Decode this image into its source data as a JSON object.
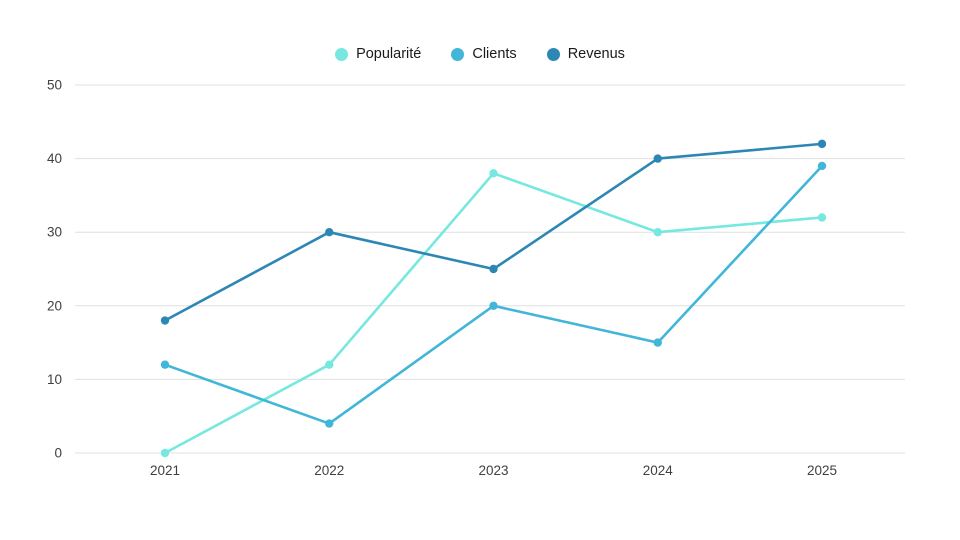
{
  "chart_data": {
    "type": "line",
    "title": "",
    "xlabel": "",
    "ylabel": "",
    "categories": [
      "2021",
      "2022",
      "2023",
      "2024",
      "2025"
    ],
    "series": [
      {
        "name": "Popularité",
        "color": "#76E8DF",
        "values": [
          0,
          12,
          38,
          30,
          32
        ]
      },
      {
        "name": "Clients",
        "color": "#41B6D9",
        "values": [
          12,
          4,
          20,
          15,
          39
        ]
      },
      {
        "name": "Revenus",
        "color": "#2D87B5",
        "values": [
          18,
          30,
          25,
          40,
          42
        ]
      }
    ],
    "ylim": [
      0,
      50
    ],
    "ytick_step": 10,
    "grid": true,
    "legend_position": "top-center",
    "background_color": "#ffffff",
    "gridline_color": "#e0e0e0",
    "axis_text_color": "#404040"
  }
}
